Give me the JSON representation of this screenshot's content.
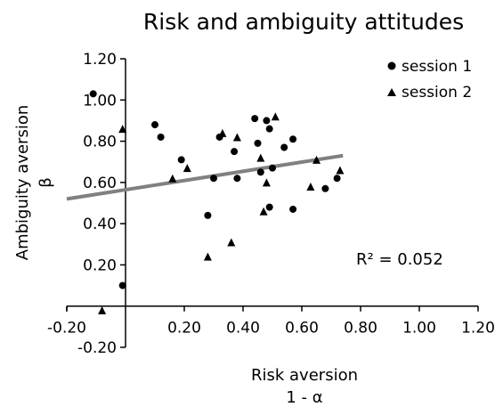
{
  "chart_data": {
    "type": "scatter",
    "title": "Risk and ambiguity attitudes",
    "xlabel": "Risk aversion",
    "xlabel_symbol": "1 - α",
    "ylabel": "Ambiguity aversion",
    "ylabel_symbol": "β",
    "xlim": [
      -0.2,
      1.2
    ],
    "ylim": [
      -0.2,
      1.2
    ],
    "x_ticks": [
      "-0.20",
      "0.20",
      "0.40",
      "0.60",
      "0.80",
      "1.00",
      "1.20"
    ],
    "x_tick_values": [
      -0.2,
      0.2,
      0.4,
      0.6,
      0.8,
      1.0,
      1.2
    ],
    "y_ticks": [
      "-0.20",
      "0.20",
      "0.40",
      "0.60",
      "0.80",
      "1.00",
      "1.20"
    ],
    "y_tick_values": [
      -0.2,
      0.2,
      0.4,
      0.6,
      0.8,
      1.0,
      1.2
    ],
    "grid": false,
    "legend_position": "top-right",
    "series": [
      {
        "name": "session 1",
        "marker": "circle",
        "color": "#000000",
        "points": [
          [
            -0.11,
            1.03
          ],
          [
            -0.01,
            0.1
          ],
          [
            0.1,
            0.88
          ],
          [
            0.12,
            0.82
          ],
          [
            0.19,
            0.71
          ],
          [
            0.28,
            0.44
          ],
          [
            0.3,
            0.62
          ],
          [
            0.32,
            0.82
          ],
          [
            0.37,
            0.75
          ],
          [
            0.38,
            0.62
          ],
          [
            0.44,
            0.91
          ],
          [
            0.45,
            0.79
          ],
          [
            0.46,
            0.65
          ],
          [
            0.48,
            0.9
          ],
          [
            0.49,
            0.86
          ],
          [
            0.49,
            0.48
          ],
          [
            0.5,
            0.67
          ],
          [
            0.54,
            0.77
          ],
          [
            0.57,
            0.81
          ],
          [
            0.57,
            0.47
          ],
          [
            0.68,
            0.57
          ],
          [
            0.72,
            0.62
          ]
        ]
      },
      {
        "name": "session 2",
        "marker": "triangle",
        "color": "#000000",
        "points": [
          [
            -0.08,
            -0.02
          ],
          [
            -0.01,
            0.86
          ],
          [
            0.16,
            0.62
          ],
          [
            0.21,
            0.67
          ],
          [
            0.28,
            0.24
          ],
          [
            0.33,
            0.84
          ],
          [
            0.36,
            0.31
          ],
          [
            0.38,
            0.82
          ],
          [
            0.46,
            0.72
          ],
          [
            0.47,
            0.46
          ],
          [
            0.48,
            0.6
          ],
          [
            0.51,
            0.92
          ],
          [
            0.63,
            0.58
          ],
          [
            0.65,
            0.71
          ],
          [
            0.73,
            0.66
          ]
        ]
      }
    ],
    "trendline": {
      "x": [
        -0.2,
        0.74
      ],
      "y": [
        0.52,
        0.73
      ],
      "color": "#808080"
    },
    "annotation": "R² = 0.052"
  }
}
